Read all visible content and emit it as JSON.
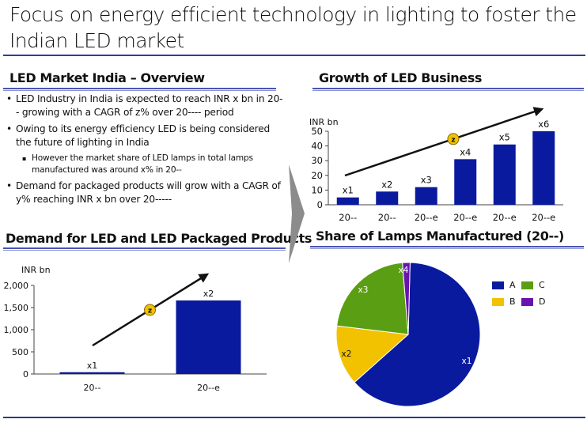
{
  "page": {
    "title": "Focus on energy efficient technology in lighting to foster the Indian LED market"
  },
  "overview": {
    "heading": "LED Market India – Overview",
    "bullets": [
      {
        "level": 1,
        "text": "LED Industry in India is expected to reach INR x bn in 20-- growing with a CAGR of z% over 20---- period"
      },
      {
        "level": 1,
        "text": "Owing to its energy efficiency LED is being considered the future of lighting in India"
      },
      {
        "level": 2,
        "text": "However the market share of LED lamps in total lamps manufactured was around x% in 20--"
      },
      {
        "level": 1,
        "text": " Demand for packaged products will grow with a CAGR of y% reaching INR x bn over 20-----"
      }
    ]
  },
  "colors": {
    "bar": "#0a1a9e",
    "rule": "#2e3e9c",
    "cagr_badge": "#f2c200",
    "chevron": "#8c8c8c",
    "pie_A": "#0a1a9e",
    "pie_B": "#f2c200",
    "pie_C": "#5a9e14",
    "pie_D": "#6a14b0"
  },
  "chart_data": [
    {
      "id": "growth",
      "type": "bar",
      "title": "Growth of LED Business",
      "ylabel": "INR bn",
      "xlabel": "",
      "categories": [
        "20--",
        "20--",
        "20--e",
        "20--e",
        "20--e",
        "20--e"
      ],
      "values": [
        5,
        9,
        12,
        31,
        41,
        50
      ],
      "data_labels": [
        "x1",
        "x2",
        "x3",
        "x4",
        "x5",
        "x6"
      ],
      "ylim": [
        0,
        50
      ],
      "yticks": [
        "0",
        "10",
        "20",
        "30",
        "40",
        "50"
      ],
      "grid": false,
      "annotation": {
        "type": "trend-arrow",
        "label": "z"
      }
    },
    {
      "id": "demand",
      "type": "bar",
      "title": "Demand for LED and LED Packaged Products",
      "ylabel": "INR bn",
      "xlabel": "",
      "categories": [
        "20--",
        "20--e"
      ],
      "values": [
        40,
        1660
      ],
      "data_labels": [
        "x1",
        "x2"
      ],
      "ylim": [
        0,
        2000
      ],
      "yticks": [
        "0",
        "500",
        "1,000",
        "1,500",
        "2,000"
      ],
      "grid": false,
      "annotation": {
        "type": "trend-arrow",
        "label": "z"
      }
    },
    {
      "id": "share",
      "type": "pie",
      "title": "Share of Lamps Manufactured (20--)",
      "slices": [
        {
          "name": "A",
          "value": 63,
          "label": "x1"
        },
        {
          "name": "B",
          "value": 13.5,
          "label": "x2"
        },
        {
          "name": "C",
          "value": 21.8,
          "label": "x3"
        },
        {
          "name": "D",
          "value": 1.7,
          "label": "x4"
        }
      ],
      "legend": {
        "placement": "right",
        "entries": [
          "A",
          "B",
          "C",
          "D"
        ]
      }
    }
  ]
}
